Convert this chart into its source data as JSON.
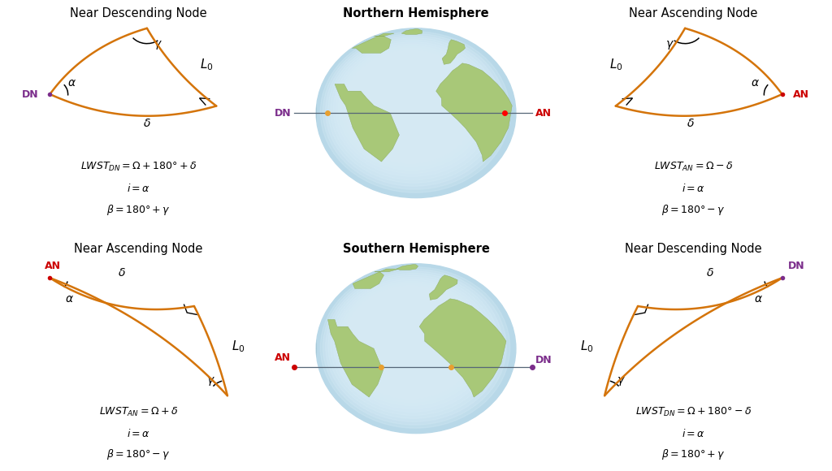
{
  "bg_color": "#ffffff",
  "grid_color": "#b0b8c0",
  "orange": "#D4740A",
  "red": "#cc0000",
  "purple": "#7B2D8B",
  "black": "#000000",
  "panel_titles": {
    "top_left": "Near Descending Node",
    "top_center": "Northern Hemisphere",
    "top_right": "Near Ascending Node",
    "bot_left": "Near Ascending Node",
    "bot_center": "Southern Hemisphere",
    "bot_right": "Near Descending Node"
  },
  "eq_top_left": [
    "LWST_{DN} = \\Omega + 180° + \\delta",
    "i = \\alpha",
    "\\beta = 180° + \\gamma"
  ],
  "eq_top_right": [
    "LWST_{AN} = \\Omega - \\delta",
    "i = \\alpha",
    "\\beta = 180° - \\gamma"
  ],
  "eq_bot_left": [
    "LWST_{AN} = \\Omega + \\delta",
    "i = \\alpha",
    "\\beta = 180° - \\gamma"
  ],
  "eq_bot_right": [
    "LWST_{DN} = \\Omega + 180° - \\delta",
    "i = \\alpha",
    "\\beta = 180° + \\gamma"
  ]
}
